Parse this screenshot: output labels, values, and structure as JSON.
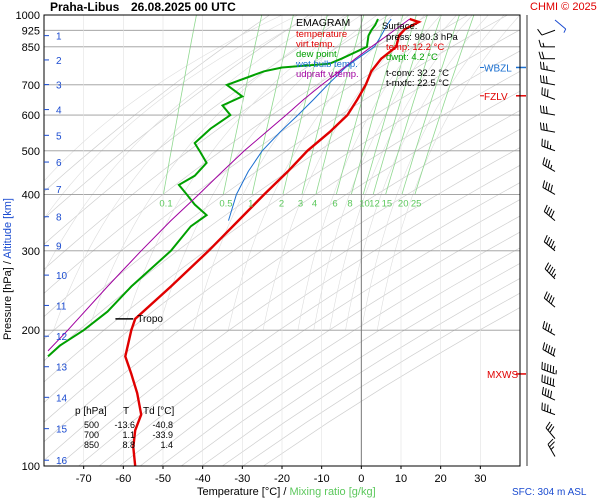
{
  "header": {
    "station": "Praha-Libus",
    "datetime": "26.08.2025 00 UTC",
    "copyright": "CHMI © 2025"
  },
  "legend": {
    "title": "EMAGRAM",
    "items": [
      {
        "label": "temperature",
        "color": "#e00000"
      },
      {
        "label": "virt.temp.",
        "color": "#e00000"
      },
      {
        "label": "dew point",
        "color": "#00a000"
      },
      {
        "label": "wet bulb temp.",
        "color": "#1a6fd0"
      },
      {
        "label": "udpraft v.temp.",
        "color": "#a000a0"
      }
    ]
  },
  "surface": {
    "title": "Surface:",
    "press": "press: 980.3 hPa",
    "temp": "temp: 12.2 °C",
    "dwpt": "dwpt: 4.2 °C",
    "tconv": "t-conv: 32.2 °C",
    "tmxfc": "t-mxfc: 22.5 °C"
  },
  "table": {
    "headers": [
      "p [hPa]",
      "T",
      "Td [°C]"
    ],
    "rows": [
      [
        "500",
        "-13.6",
        "-40.8"
      ],
      [
        "700",
        "1.1",
        "-33.9"
      ],
      [
        "850",
        "8.8",
        "1.4"
      ]
    ]
  },
  "footer": {
    "sfc": "SFC: 304 m ASL"
  },
  "chart_data": {
    "type": "line",
    "title": "Praha-Libus 26.08.2025 00 UTC",
    "xlabel": "Temperature [°C]",
    "xlabel2": "Mixing ratio [g/kg]",
    "ylabel": "Pressure [hPa]",
    "ylabel2": "Altitude [km]",
    "xlim": [
      -80,
      40
    ],
    "ylim": [
      1000,
      100
    ],
    "y_log_scale": true,
    "grid": true,
    "x_ticks": [
      -70,
      -60,
      -50,
      -40,
      -30,
      -20,
      -10,
      0,
      10,
      20,
      30
    ],
    "pressure_ticks": [
      100,
      200,
      300,
      400,
      500,
      600,
      700,
      850,
      925,
      1000
    ],
    "altitude_ticks": [
      {
        "km": 1,
        "p": 900
      },
      {
        "km": 2,
        "p": 795
      },
      {
        "km": 3,
        "p": 701
      },
      {
        "km": 4,
        "p": 617
      },
      {
        "km": 5,
        "p": 541
      },
      {
        "km": 6,
        "p": 472
      },
      {
        "km": 7,
        "p": 411
      },
      {
        "km": 8,
        "p": 357
      },
      {
        "km": 9,
        "p": 308
      },
      {
        "km": 10,
        "p": 265
      },
      {
        "km": 11,
        "p": 227
      },
      {
        "km": 12,
        "p": 194
      },
      {
        "km": 13,
        "p": 166
      },
      {
        "km": 14,
        "p": 142
      },
      {
        "km": 15,
        "p": 121
      },
      {
        "km": 16,
        "p": 103
      }
    ],
    "mixing_ratio_labels": [
      "0.1",
      "0.5",
      "1",
      "2",
      "3",
      "4",
      "6",
      "8",
      "10",
      "12",
      "15",
      "20",
      "25"
    ],
    "mixing_ratio_level_p": 400,
    "markers": [
      {
        "label": "MXWS",
        "p": 160,
        "color": "#e00000"
      },
      {
        "label": "FZLV",
        "p": 662,
        "color": "#e00000"
      },
      {
        "label": "WBZL",
        "p": 765,
        "color": "#1a6fd0"
      }
    ],
    "tropopause": {
      "label": "Tropo",
      "p": 212
    },
    "series": [
      {
        "name": "temperature",
        "color": "#e00000",
        "points": [
          [
            980,
            12.2
          ],
          [
            965,
            14.5
          ],
          [
            950,
            13.0
          ],
          [
            930,
            11.0
          ],
          [
            900,
            9.5
          ],
          [
            850,
            8.8
          ],
          [
            800,
            5.0
          ],
          [
            750,
            2.5
          ],
          [
            700,
            1.1
          ],
          [
            650,
            -1.0
          ],
          [
            600,
            -3.5
          ],
          [
            550,
            -8.0
          ],
          [
            500,
            -13.6
          ],
          [
            450,
            -18.5
          ],
          [
            400,
            -24.5
          ],
          [
            350,
            -31.0
          ],
          [
            300,
            -38.5
          ],
          [
            250,
            -48.0
          ],
          [
            212,
            -57.0
          ],
          [
            200,
            -58.0
          ],
          [
            175,
            -59.5
          ],
          [
            160,
            -58.0
          ],
          [
            145,
            -56.5
          ],
          [
            130,
            -55.5
          ],
          [
            120,
            -57.0
          ],
          [
            110,
            -57.5
          ],
          [
            100,
            -57.0
          ]
        ]
      },
      {
        "name": "dew point",
        "color": "#00a000",
        "points": [
          [
            980,
            4.2
          ],
          [
            950,
            3.5
          ],
          [
            925,
            2.5
          ],
          [
            900,
            1.8
          ],
          [
            850,
            1.4
          ],
          [
            800,
            -5.0
          ],
          [
            780,
            -8.0
          ],
          [
            765,
            -20.0
          ],
          [
            750,
            -24.5
          ],
          [
            700,
            -33.9
          ],
          [
            660,
            -30.0
          ],
          [
            630,
            -35.0
          ],
          [
            600,
            -33.0
          ],
          [
            560,
            -38.0
          ],
          [
            520,
            -42.0
          ],
          [
            500,
            -40.8
          ],
          [
            470,
            -39.0
          ],
          [
            440,
            -42.0
          ],
          [
            420,
            -46.0
          ],
          [
            400,
            -44.0
          ],
          [
            380,
            -42.0
          ],
          [
            360,
            -39.0
          ],
          [
            340,
            -43.0
          ],
          [
            300,
            -48.0
          ],
          [
            250,
            -58.0
          ],
          [
            220,
            -64.0
          ],
          [
            200,
            -70.0
          ],
          [
            185,
            -76.0
          ],
          [
            175,
            -79.0
          ]
        ]
      },
      {
        "name": "wet bulb temp.",
        "color": "#1a6fd0",
        "points": [
          [
            980,
            7.5
          ],
          [
            950,
            6.5
          ],
          [
            900,
            5.0
          ],
          [
            850,
            3.3
          ],
          [
            800,
            -1.0
          ],
          [
            765,
            -4.0
          ],
          [
            750,
            -5.0
          ],
          [
            700,
            -8.5
          ],
          [
            650,
            -12.0
          ],
          [
            600,
            -16.0
          ],
          [
            550,
            -20.5
          ],
          [
            500,
            -25.0
          ],
          [
            450,
            -28.5
          ],
          [
            400,
            -31.5
          ],
          [
            350,
            -33.5
          ]
        ]
      },
      {
        "name": "udpraft v.temp.",
        "color": "#a000a0",
        "points": [
          [
            980,
            12.2
          ],
          [
            900,
            6.5
          ],
          [
            850,
            2.5
          ],
          [
            800,
            -1.5
          ],
          [
            750,
            -5.5
          ],
          [
            700,
            -10.0
          ],
          [
            650,
            -14.5
          ],
          [
            600,
            -19.0
          ],
          [
            550,
            -24.0
          ],
          [
            500,
            -29.5
          ],
          [
            450,
            -35.0
          ],
          [
            400,
            -41.0
          ],
          [
            350,
            -48.0
          ],
          [
            300,
            -55.5
          ],
          [
            250,
            -64.0
          ],
          [
            200,
            -74.0
          ],
          [
            180,
            -79.0
          ]
        ]
      }
    ],
    "wind_barbs": [
      {
        "p": 975,
        "dir": 130,
        "kt": 5
      },
      {
        "p": 925,
        "dir": 250,
        "kt": 10
      },
      {
        "p": 850,
        "dir": 270,
        "kt": 15
      },
      {
        "p": 800,
        "dir": 270,
        "kt": 20
      },
      {
        "p": 750,
        "dir": 280,
        "kt": 25
      },
      {
        "p": 700,
        "dir": 280,
        "kt": 30
      },
      {
        "p": 650,
        "dir": 290,
        "kt": 30
      },
      {
        "p": 600,
        "dir": 280,
        "kt": 30
      },
      {
        "p": 550,
        "dir": 280,
        "kt": 30
      },
      {
        "p": 500,
        "dir": 290,
        "kt": 35
      },
      {
        "p": 450,
        "dir": 300,
        "kt": 35
      },
      {
        "p": 400,
        "dir": 300,
        "kt": 40
      },
      {
        "p": 350,
        "dir": 310,
        "kt": 40
      },
      {
        "p": 300,
        "dir": 310,
        "kt": 45
      },
      {
        "p": 260,
        "dir": 315,
        "kt": 45
      },
      {
        "p": 225,
        "dir": 310,
        "kt": 40
      },
      {
        "p": 195,
        "dir": 300,
        "kt": 35
      },
      {
        "p": 175,
        "dir": 300,
        "kt": 50
      },
      {
        "p": 160,
        "dir": 290,
        "kt": 55
      },
      {
        "p": 150,
        "dir": 290,
        "kt": 50
      },
      {
        "p": 140,
        "dir": 295,
        "kt": 40
      },
      {
        "p": 130,
        "dir": 290,
        "kt": 35
      },
      {
        "p": 115,
        "dir": 320,
        "kt": 30
      },
      {
        "p": 105,
        "dir": 330,
        "kt": 25
      }
    ]
  }
}
